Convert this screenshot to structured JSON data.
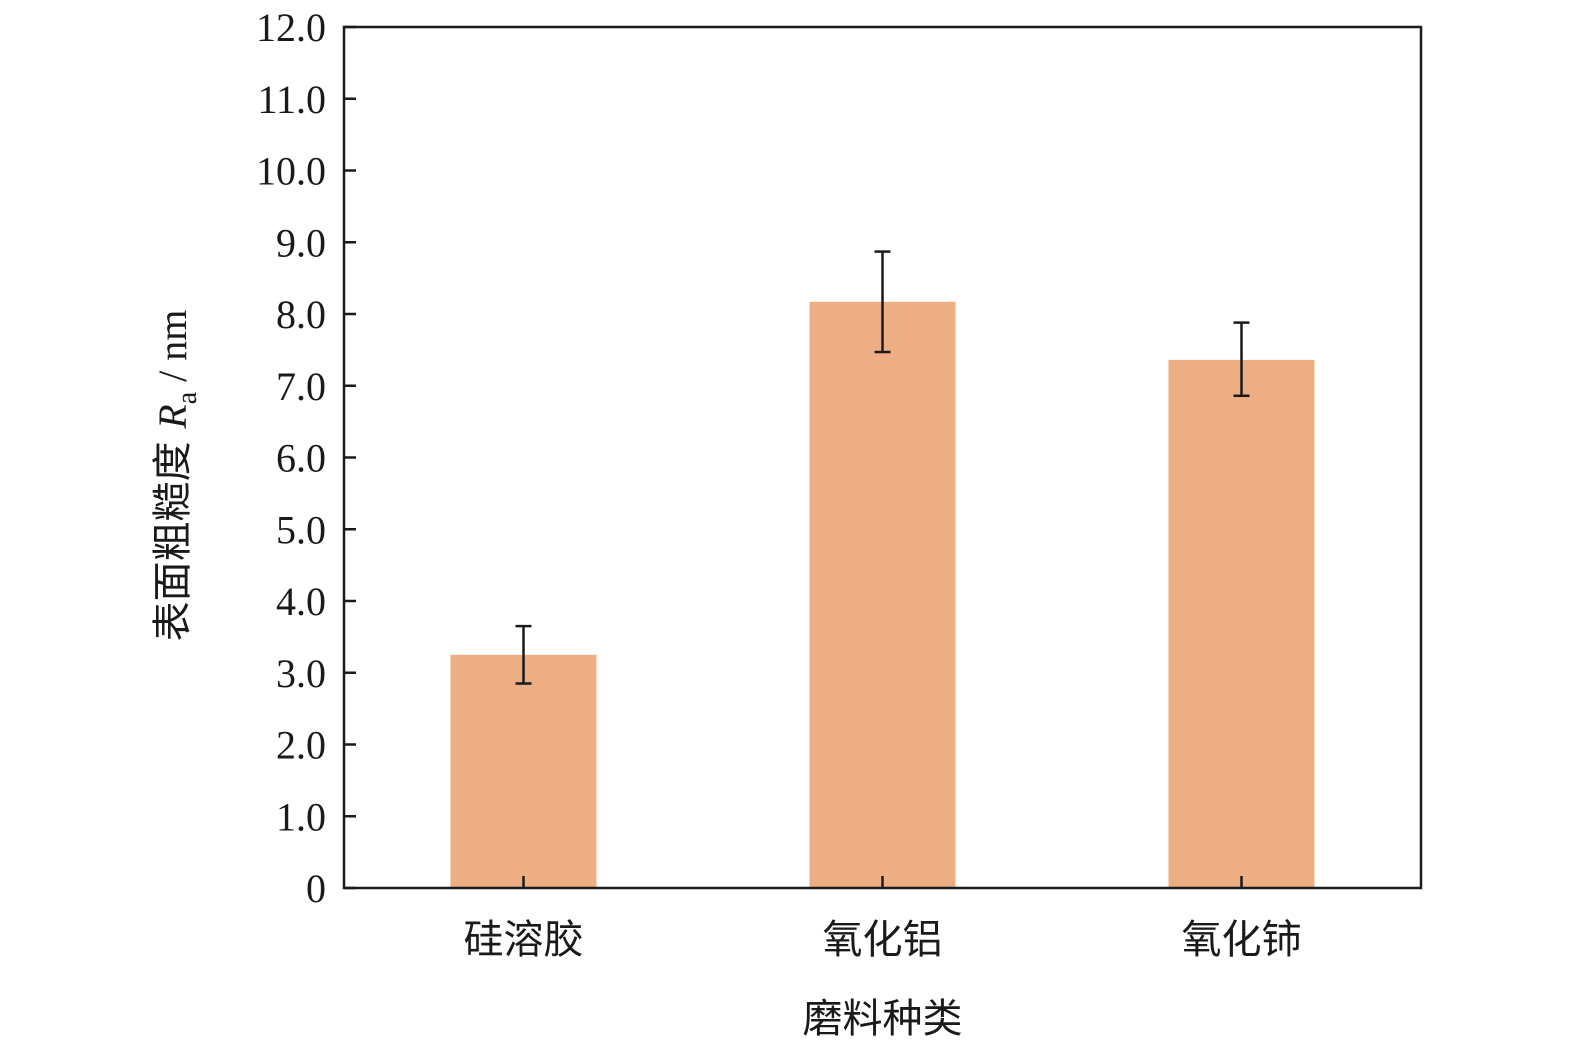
{
  "chart_data": {
    "type": "bar",
    "categories": [
      "硅溶胶",
      "氧化铝",
      "氧化铈"
    ],
    "values": [
      3.25,
      8.17,
      7.36
    ],
    "errors": [
      {
        "low": 2.85,
        "high": 3.65
      },
      {
        "low": 7.47,
        "high": 8.87
      },
      {
        "low": 6.86,
        "high": 7.88
      }
    ],
    "xlabel": "磨料种类",
    "ylabel": {
      "prefix": "表面粗糙度 ",
      "symbol": "R",
      "subscript": "a",
      "suffix": " / nm"
    },
    "ylim": [
      0,
      12
    ],
    "yticks": [
      "0",
      "1.0",
      "2.0",
      "3.0",
      "4.0",
      "5.0",
      "6.0",
      "7.0",
      "8.0",
      "9.0",
      "10.0",
      "11.0",
      "12.0"
    ],
    "grid": false,
    "colors": {
      "bar": "#edae83",
      "axis": "#1a1a1a",
      "errorbar": "#1a1a1a"
    }
  }
}
